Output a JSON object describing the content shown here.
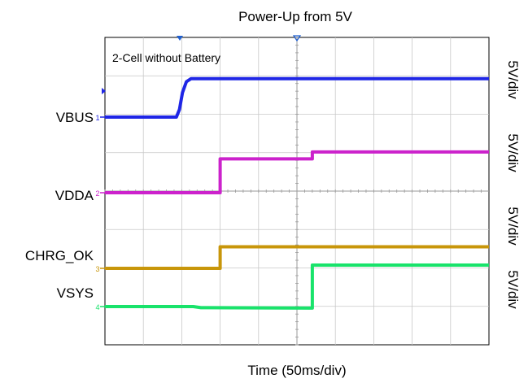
{
  "chart_data": {
    "type": "line",
    "title": "Power-Up from 5V",
    "subtitle": "2-Cell without Battery",
    "xlabel": "Time (50ms/div)",
    "x_range": [
      0,
      500
    ],
    "x_unit": "ms",
    "divisions": {
      "x": 10,
      "y": 8
    },
    "grid": true,
    "series": [
      {
        "name": "VBUS",
        "channel_marker": "1",
        "scale": "5V/div",
        "color": "#1f26e6",
        "points": [
          [
            0,
            0
          ],
          [
            93,
            0
          ],
          [
            97,
            1
          ],
          [
            101,
            3.2
          ],
          [
            106,
            4.6
          ],
          [
            112,
            5
          ],
          [
            500,
            5
          ]
        ]
      },
      {
        "name": "VDDA",
        "channel_marker": "2",
        "scale": "5V/div",
        "color": "#cc22cc",
        "points": [
          [
            0,
            0
          ],
          [
            150,
            0
          ],
          [
            150,
            4.4
          ],
          [
            270,
            4.4
          ],
          [
            270,
            5.3
          ],
          [
            500,
            5.3
          ]
        ]
      },
      {
        "name": "CHRG_OK",
        "channel_marker": "3",
        "scale": "5V/div",
        "color": "#c8960a",
        "points": [
          [
            0,
            0
          ],
          [
            150,
            0
          ],
          [
            150,
            2.8
          ],
          [
            500,
            2.8
          ]
        ]
      },
      {
        "name": "VSYS",
        "channel_marker": "4",
        "scale": "5V/div",
        "color": "#19e36b",
        "points": [
          [
            0,
            0
          ],
          [
            115,
            0
          ],
          [
            125,
            -0.15
          ],
          [
            270,
            -0.2
          ],
          [
            270,
            5.4
          ],
          [
            500,
            5.4
          ]
        ]
      }
    ]
  }
}
